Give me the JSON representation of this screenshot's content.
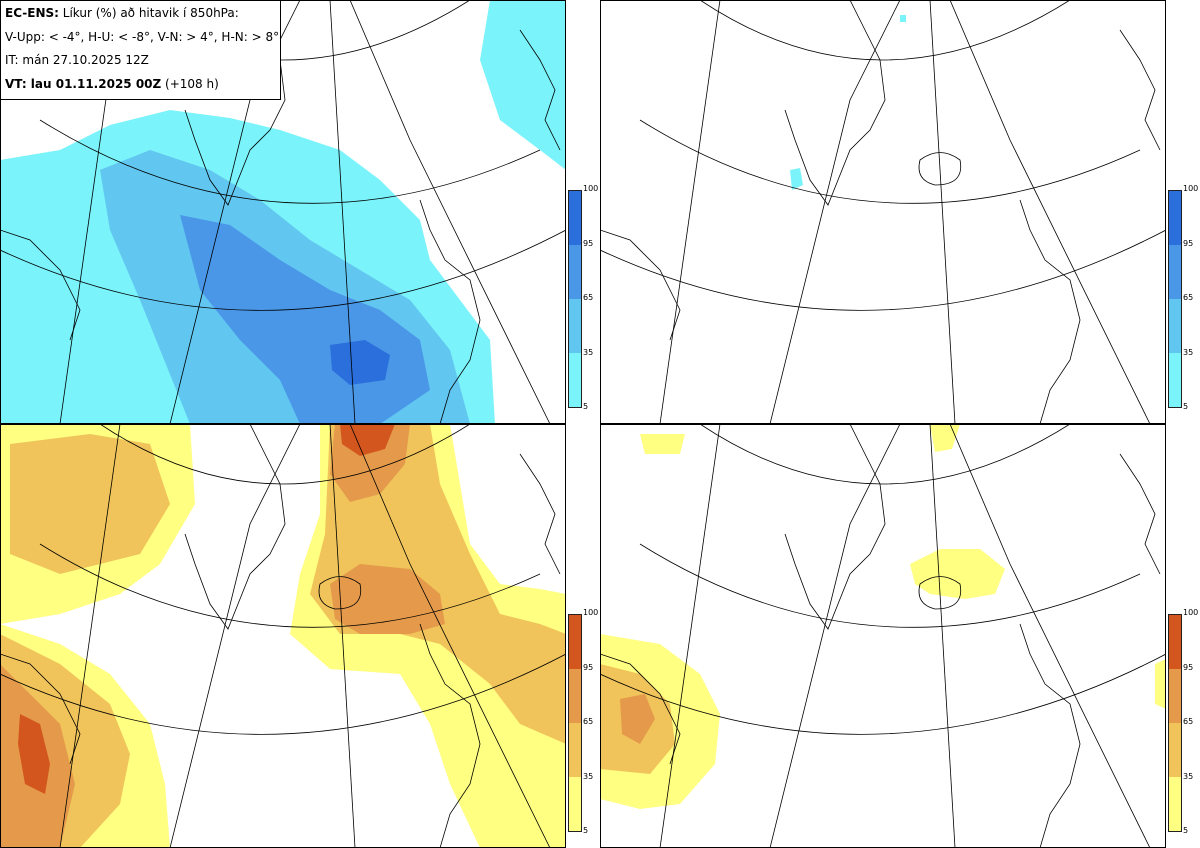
{
  "header": {
    "model": "EC-ENS:",
    "title": "Líkur (%) að hitavik í 850hPa:",
    "categories": "V-Upp: < -4°, H-U: < -8°, V-N: > 4°, H-N: > 8°",
    "init_time": "IT: mán 27.10.2025 12Z",
    "valid_prefix": "VT: lau 01.11.2025 00Z",
    "lead_time": "(+108 h)"
  },
  "panels": [
    {
      "id": "cold-lt-minus4",
      "label": "V-Upp",
      "threshold": "< -4°",
      "palette": "blue",
      "max_shown_percent": 95
    },
    {
      "id": "cold-lt-minus8",
      "label": "H-U",
      "threshold": "< -8°",
      "palette": "blue",
      "max_shown_percent": 5
    },
    {
      "id": "warm-gt-4",
      "label": "V-N",
      "threshold": "> 4°",
      "palette": "orange",
      "max_shown_percent": 95
    },
    {
      "id": "warm-gt-8",
      "label": "H-N",
      "threshold": "> 8°",
      "palette": "orange",
      "max_shown_percent": 65
    }
  ],
  "colorbar": {
    "ticks": [
      "100",
      "95",
      "65",
      "35",
      "5"
    ],
    "blue_colors": [
      "#2a6fdb",
      "#4a97e8",
      "#61c6f0",
      "#7af3fa"
    ],
    "orange_colors": [
      "#d2561e",
      "#e49a4a",
      "#f0c45a",
      "#ffff82"
    ]
  }
}
